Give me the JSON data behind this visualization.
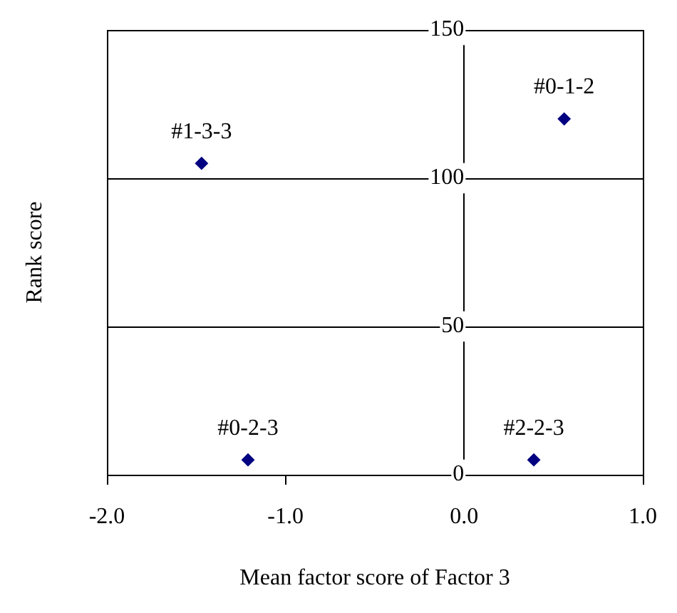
{
  "chart_data": {
    "type": "scatter",
    "xlabel": "Mean factor score of Factor 3",
    "ylabel": "Rank score",
    "series": [
      {
        "color": "#000080",
        "x": [
          -1.47,
          0.56,
          -1.21,
          0.39
        ],
        "values": [
          105,
          120,
          5,
          5
        ]
      }
    ],
    "annotations": [
      {
        "text": "#1-3-3",
        "x": -1.47,
        "y": 105
      },
      {
        "text": "#0-1-2",
        "x": 0.56,
        "y": 120
      },
      {
        "text": "#0-2-3",
        "x": -1.21,
        "y": 5
      },
      {
        "text": "#2-2-3",
        "x": 0.39,
        "y": 5
      }
    ],
    "xlim": [
      -2.0,
      1.0
    ],
    "xticks": [
      {
        "value": -2,
        "label": "-2.0"
      },
      {
        "value": -1,
        "label": "-1.0"
      },
      {
        "value": 0,
        "label": "0.0"
      },
      {
        "value": 1,
        "label": "1.0"
      }
    ],
    "ylim": [
      0,
      150
    ],
    "yticks": [
      0,
      50,
      100,
      150
    ],
    "grid": "y",
    "marker": "diamond"
  }
}
